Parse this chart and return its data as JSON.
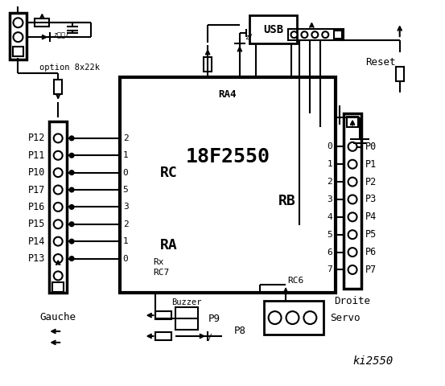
{
  "title": "ki2550",
  "bg_color": "#ffffff",
  "chip_label": "18F2550",
  "chip_sublabel": "RA4",
  "left_connector_label": "Gauche",
  "right_connector_label": "Droite",
  "left_pins": [
    "P12",
    "P11",
    "P10",
    "P17",
    "P16",
    "P15",
    "P14",
    "P13"
  ],
  "right_pins": [
    "P0",
    "P1",
    "P2",
    "P3",
    "P4",
    "P5",
    "P6",
    "P7"
  ],
  "rc_labels": [
    "2",
    "1",
    "0",
    "5",
    "3",
    "2",
    "1",
    "0"
  ],
  "rb_labels": [
    "0",
    "1",
    "2",
    "3",
    "4",
    "5",
    "6",
    "7"
  ],
  "ra_label": "RA",
  "rc_label": "RC",
  "rb_label": "RB",
  "rx_label": "Rx",
  "rc7_label": "RC7",
  "rc6_label": "RC6",
  "usb_label": "USB",
  "reset_label": "Reset",
  "buzzer_label": "Buzzer",
  "servo_label": "Servo",
  "p8_label": "P8",
  "p9_label": "P9",
  "option_label": "option 8x22k"
}
